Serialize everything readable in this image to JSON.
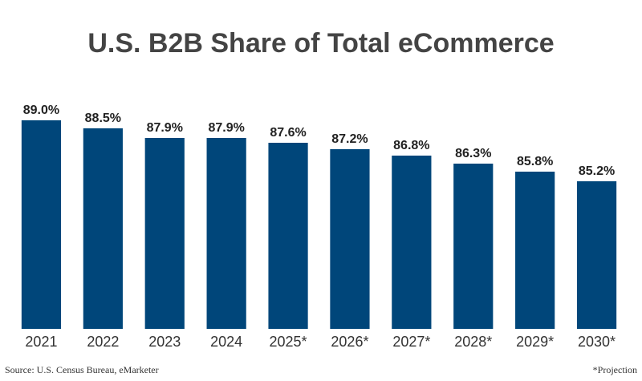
{
  "chart_data": {
    "type": "bar",
    "title": "U.S. B2B Share of Total eCommerce",
    "categories": [
      "2021",
      "2022",
      "2023",
      "2024",
      "2025*",
      "2026*",
      "2027*",
      "2028*",
      "2029*",
      "2030*"
    ],
    "values": [
      89.0,
      88.5,
      87.9,
      87.9,
      87.6,
      87.2,
      86.8,
      86.3,
      85.8,
      85.2
    ],
    "value_labels": [
      "89.0%",
      "88.5%",
      "87.9%",
      "87.9%",
      "87.6%",
      "87.2%",
      "86.8%",
      "86.3%",
      "85.8%",
      "85.2%"
    ],
    "color": "#00467a",
    "ylim": [
      76,
      90
    ],
    "source": "Source: U.S. Census Bureau, eMarketer",
    "note": "*Projection"
  }
}
